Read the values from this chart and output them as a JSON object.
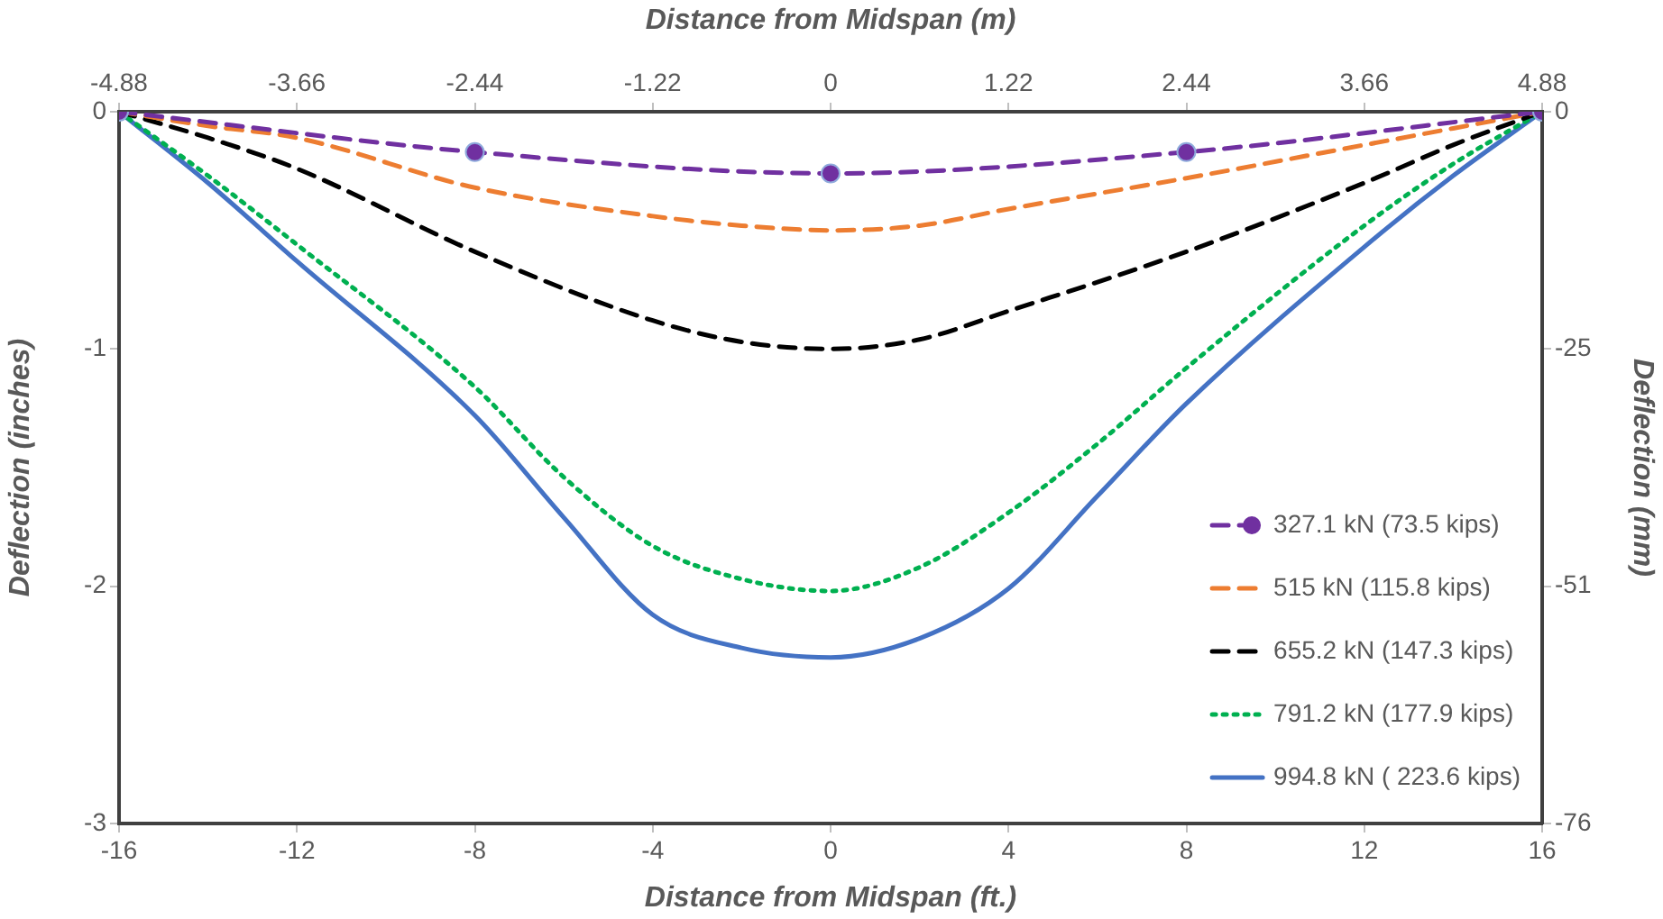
{
  "chart_data": {
    "type": "line",
    "xlabel": "Distance from Midspan (ft.)",
    "ylabel": "Deflection (inches)",
    "y2label": "Deflection (mm)",
    "x2label": "Distance from Midspan (m)",
    "xlim": [
      -16,
      16
    ],
    "xticks": [
      -16,
      -12,
      -8,
      -4,
      0,
      4,
      8,
      12,
      16
    ],
    "x2lim": [
      -4.88,
      4.88
    ],
    "x2ticks": [
      -4.88,
      -3.66,
      -2.44,
      -1.22,
      0,
      1.22,
      2.44,
      3.66,
      4.88
    ],
    "ylim": [
      -3,
      0
    ],
    "yticks": [
      -3,
      -2,
      -1,
      0
    ],
    "y2lim": [
      -76.2,
      0
    ],
    "y2ticks": [
      {
        "value": -76.2,
        "label": "-76"
      },
      {
        "value": -50.8,
        "label": "-51"
      },
      {
        "value": -25.4,
        "label": "-25"
      },
      0
    ],
    "grid": false,
    "legend": "bottom right",
    "series": [
      {
        "name": "327.1 kN (73.5 kips)",
        "color": "#7030a0",
        "line_style": "dashed",
        "marker": "circle",
        "x": [
          -16,
          -8,
          0,
          8,
          16
        ],
        "values": [
          0,
          -0.17,
          -0.26,
          -0.17,
          0
        ]
      },
      {
        "name": "515 kN (115.8 kips)",
        "color": "#ed7d31",
        "line_style": "dashed",
        "marker": "none",
        "x": [
          -16,
          -14,
          -12,
          -8,
          -4,
          -2,
          0,
          2,
          4,
          8,
          12,
          14,
          16
        ],
        "values": [
          0,
          -0.06,
          -0.11,
          -0.32,
          -0.44,
          -0.48,
          -0.5,
          -0.48,
          -0.41,
          -0.28,
          -0.14,
          -0.07,
          0
        ]
      },
      {
        "name": "655.2 kN (147.3 kips)",
        "color": "#000000",
        "line_style": "dashed",
        "marker": "none",
        "x": [
          -16,
          -14,
          -12,
          -8,
          -4,
          -2,
          0,
          2,
          4,
          8,
          12,
          14,
          16
        ],
        "values": [
          0,
          -0.11,
          -0.24,
          -0.59,
          -0.88,
          -0.97,
          -1.0,
          -0.96,
          -0.84,
          -0.59,
          -0.3,
          -0.14,
          0
        ]
      },
      {
        "name": "791.2 kN (177.9 kips)",
        "color": "#00b050",
        "line_style": "dotted",
        "marker": "none",
        "x": [
          -16,
          -14,
          -12,
          -8,
          -6,
          -4,
          -2,
          0,
          2,
          4,
          6,
          8,
          12,
          14,
          16
        ],
        "values": [
          0,
          -0.27,
          -0.56,
          -1.16,
          -1.54,
          -1.83,
          -1.97,
          -2.02,
          -1.92,
          -1.69,
          -1.4,
          -1.08,
          -0.48,
          -0.22,
          0
        ]
      },
      {
        "name": "994.8 kN ( 223.6 kips)",
        "color": "#4472c4",
        "line_style": "solid",
        "marker": "none",
        "x": [
          -16,
          -14,
          -12,
          -8,
          -6,
          -4,
          -2,
          0,
          2,
          4,
          6,
          8,
          12,
          14,
          16
        ],
        "values": [
          0,
          -0.3,
          -0.63,
          -1.28,
          -1.71,
          -2.12,
          -2.26,
          -2.3,
          -2.22,
          -2.01,
          -1.62,
          -1.23,
          -0.57,
          -0.27,
          0
        ]
      }
    ]
  }
}
